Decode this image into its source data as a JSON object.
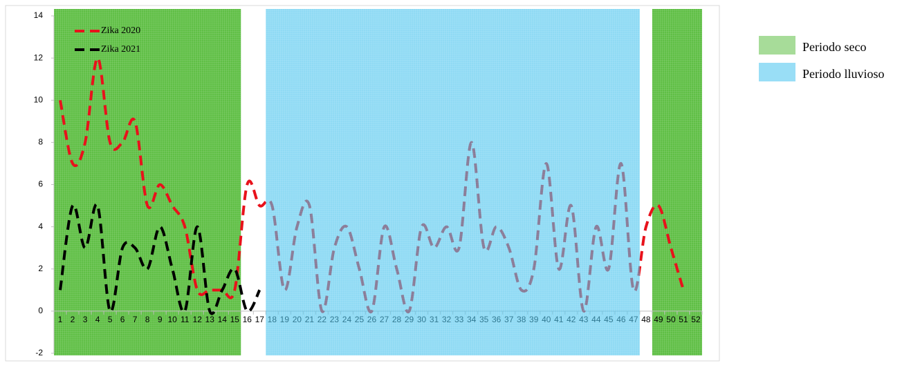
{
  "chart_data": {
    "type": "line",
    "categories": [
      "1",
      "2",
      "3",
      "4",
      "5",
      "6",
      "7",
      "8",
      "9",
      "10",
      "11",
      "12",
      "13",
      "14",
      "15",
      "16",
      "17",
      "18",
      "19",
      "20",
      "21",
      "22",
      "23",
      "24",
      "25",
      "26",
      "27",
      "28",
      "29",
      "30",
      "31",
      "32",
      "33",
      "34",
      "35",
      "36",
      "37",
      "38",
      "39",
      "40",
      "41",
      "42",
      "43",
      "44",
      "45",
      "46",
      "47",
      "48",
      "49",
      "50",
      "51",
      "52"
    ],
    "series": [
      {
        "name": "Zika 2020",
        "color": "#e8121b",
        "values": [
          10,
          7,
          8,
          12,
          8,
          8,
          9,
          5,
          6,
          5,
          4,
          1,
          1,
          1,
          1,
          6,
          5,
          5,
          1,
          4,
          5,
          0,
          3,
          4,
          2,
          0,
          4,
          2,
          0,
          4,
          3,
          4,
          3,
          8,
          3,
          4,
          3,
          1,
          2,
          7,
          2,
          5,
          0,
          4,
          2,
          7,
          1,
          4,
          5,
          3,
          1,
          null
        ]
      },
      {
        "name": "Zika 2021",
        "color": "#000000",
        "values": [
          1,
          5,
          3,
          5,
          0,
          3,
          3,
          2,
          4,
          2,
          0,
          4,
          0,
          1,
          2,
          0,
          1,
          null,
          null,
          null,
          null,
          null,
          null,
          null,
          null,
          null,
          null,
          null,
          null,
          null,
          null,
          null,
          null,
          null,
          null,
          null,
          null,
          null,
          null,
          null,
          null,
          null,
          null,
          null,
          null,
          null,
          null,
          null,
          null,
          null,
          null,
          null
        ]
      }
    ],
    "periods": [
      {
        "name": "Periodo seco",
        "color": "#5fbf45",
        "ranges": [
          [
            1,
            15
          ],
          [
            49,
            52
          ]
        ]
      },
      {
        "name": "Periodo lluvioso",
        "color": "#45c3ee",
        "ranges": [
          [
            18,
            47
          ]
        ]
      }
    ],
    "ylim": [
      -2,
      14
    ],
    "yticks": [
      -2,
      0,
      2,
      4,
      6,
      8,
      10,
      12,
      14
    ]
  }
}
